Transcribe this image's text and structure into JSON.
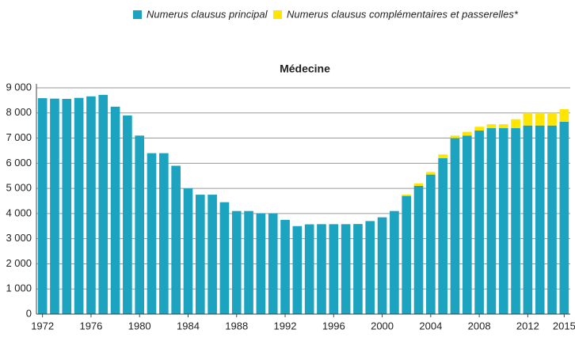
{
  "chart_data": {
    "type": "stacked_bar",
    "title": "Médecine",
    "categories": [
      "1972",
      null,
      null,
      null,
      "1976",
      null,
      null,
      null,
      "1980",
      null,
      null,
      null,
      "1984",
      null,
      null,
      null,
      "1988",
      null,
      null,
      null,
      "1992",
      null,
      null,
      null,
      "1996",
      null,
      null,
      null,
      "2000",
      null,
      null,
      null,
      "2004",
      null,
      null,
      null,
      "2008",
      null,
      null,
      null,
      "2012",
      null,
      null,
      "2015"
    ],
    "series": [
      {
        "name": "Numerus clausus principal",
        "color": "#1ba3c0",
        "values": [
          8588,
          8571,
          8560,
          8600,
          8660,
          8720,
          8250,
          7900,
          7100,
          6400,
          6400,
          5900,
          5000,
          4750,
          4750,
          4450,
          4100,
          4100,
          4000,
          4000,
          3750,
          3500,
          3570,
          3576,
          3576,
          3576,
          3583,
          3700,
          3850,
          4100,
          4700,
          5100,
          5550,
          6200,
          7000,
          7100,
          7300,
          7400,
          7400,
          7400,
          7500,
          7500,
          7500,
          7650
        ]
      },
      {
        "name": "Numerus clausus complémentaires et passerelles*",
        "color": "#ffe500",
        "values": [
          0,
          0,
          0,
          0,
          0,
          0,
          0,
          0,
          0,
          0,
          0,
          0,
          0,
          0,
          0,
          0,
          0,
          0,
          0,
          0,
          0,
          0,
          0,
          0,
          0,
          0,
          0,
          0,
          0,
          0,
          50,
          100,
          100,
          150,
          100,
          150,
          150,
          150,
          150,
          350,
          500,
          500,
          500,
          500
        ]
      }
    ],
    "ylim": [
      0,
      9000
    ],
    "yticks": [
      0,
      {
        "value": 1000,
        "label": "1 000"
      },
      {
        "value": 2000,
        "label": "2 000"
      },
      {
        "value": 3000,
        "label": "3 000"
      },
      {
        "value": 4000,
        "label": "4 000"
      },
      {
        "value": 5000,
        "label": "5 000"
      },
      {
        "value": 6000,
        "label": "6 000"
      },
      {
        "value": 7000,
        "label": "7 000"
      },
      {
        "value": 8000,
        "label": "8 000"
      },
      {
        "value": 9000,
        "label": "9 000"
      }
    ],
    "grid": true
  }
}
